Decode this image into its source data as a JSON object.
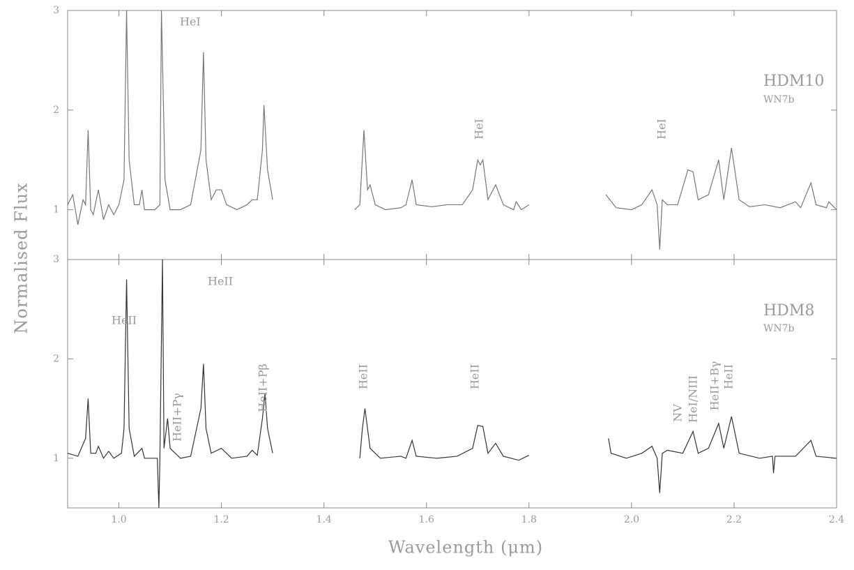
{
  "chart_data": [
    {
      "type": "line",
      "ylabel": "Normalised Flux",
      "star": "HDM10",
      "spectral_type": "WN7b",
      "annotations": [
        "HeI",
        "HeI",
        "HeI"
      ],
      "xlim": [
        0.9,
        2.4
      ],
      "ylim": [
        0.5,
        3
      ],
      "yticks": [
        1,
        2,
        3
      ],
      "x": [
        0.9,
        0.91,
        0.92,
        0.93,
        0.935,
        0.94,
        0.945,
        0.95,
        0.96,
        0.97,
        0.98,
        0.99,
        1.0,
        1.01,
        1.015,
        1.02,
        1.03,
        1.04,
        1.045,
        1.05,
        1.07,
        1.08,
        1.083,
        1.09,
        1.1,
        1.12,
        1.14,
        1.16,
        1.165,
        1.17,
        1.18,
        1.19,
        1.2,
        1.21,
        1.23,
        1.25,
        1.26,
        1.27,
        1.28,
        1.283,
        1.29,
        1.3,
        1.38,
        1.46,
        1.47,
        1.478,
        1.485,
        1.49,
        1.5,
        1.52,
        1.55,
        1.56,
        1.572,
        1.58,
        1.61,
        1.64,
        1.67,
        1.69,
        1.7,
        1.705,
        1.71,
        1.72,
        1.735,
        1.75,
        1.77,
        1.775,
        1.785,
        1.8,
        1.88,
        1.95,
        1.97,
        2.0,
        2.02,
        2.04,
        2.05,
        2.055,
        2.06,
        2.07,
        2.09,
        2.11,
        2.12,
        2.13,
        2.15,
        2.17,
        2.18,
        2.195,
        2.21,
        2.23,
        2.26,
        2.29,
        2.32,
        2.33,
        2.35,
        2.36,
        2.38,
        2.385,
        2.4
      ],
      "series": [
        {
          "name": "HDM10",
          "color": "#777777",
          "values": [
            1.05,
            1.15,
            0.85,
            1.1,
            1.05,
            1.8,
            1.0,
            0.95,
            1.2,
            0.9,
            1.05,
            0.95,
            1.05,
            1.3,
            3.0,
            1.5,
            1.05,
            1.05,
            1.2,
            1.0,
            1.0,
            1.05,
            3.0,
            1.3,
            1.0,
            1.0,
            1.05,
            1.6,
            2.58,
            1.5,
            1.1,
            1.2,
            1.2,
            1.05,
            1.0,
            1.05,
            1.1,
            1.1,
            1.6,
            2.05,
            1.4,
            1.1,
            null,
            1.0,
            1.05,
            1.8,
            1.2,
            1.25,
            1.05,
            1.0,
            1.02,
            1.05,
            1.3,
            1.05,
            1.03,
            1.05,
            1.05,
            1.2,
            1.5,
            1.45,
            1.5,
            1.1,
            1.25,
            1.05,
            1.0,
            1.08,
            1.0,
            1.05,
            null,
            1.15,
            1.02,
            1.0,
            1.05,
            1.2,
            1.05,
            0.6,
            1.1,
            1.05,
            1.05,
            1.4,
            1.38,
            1.1,
            1.15,
            1.5,
            1.1,
            1.62,
            1.1,
            1.03,
            1.05,
            1.02,
            1.08,
            1.02,
            1.27,
            1.05,
            1.02,
            1.08,
            1.0
          ]
        }
      ]
    },
    {
      "type": "line",
      "xlabel": "Wavelength  (μm)",
      "star": "HDM8",
      "spectral_type": "WN7b",
      "annotations": [
        "HeII",
        "HeII",
        "HeII+Pγ",
        "HeII+Pβ",
        "HeII",
        "HeII",
        "NV",
        "HeI/NIII",
        "HeII+Bγ",
        "HeII"
      ],
      "xlim": [
        0.9,
        2.4
      ],
      "ylim": [
        0.5,
        3
      ],
      "yticks": [
        1,
        2,
        3
      ],
      "xticks": [
        {
          "value": 1.0,
          "label": "1.0"
        },
        1.2,
        1.4,
        1.6,
        1.8,
        {
          "value": 2.0,
          "label": "2.0"
        },
        2.2,
        2.4
      ],
      "x": [
        0.9,
        0.92,
        0.935,
        0.94,
        0.945,
        0.955,
        0.96,
        0.97,
        0.98,
        0.99,
        1.005,
        1.01,
        1.015,
        1.02,
        1.03,
        1.045,
        1.05,
        1.075,
        1.078,
        1.08,
        1.085,
        1.088,
        1.095,
        1.1,
        1.12,
        1.14,
        1.16,
        1.165,
        1.17,
        1.18,
        1.2,
        1.22,
        1.25,
        1.26,
        1.27,
        1.28,
        1.285,
        1.29,
        1.3,
        1.38,
        1.47,
        1.475,
        1.48,
        1.485,
        1.49,
        1.51,
        1.55,
        1.56,
        1.572,
        1.58,
        1.62,
        1.66,
        1.69,
        1.7,
        1.71,
        1.72,
        1.735,
        1.75,
        1.78,
        1.8,
        1.88,
        1.955,
        1.96,
        1.99,
        2.02,
        2.04,
        2.05,
        2.055,
        2.06,
        2.07,
        2.1,
        2.12,
        2.13,
        2.15,
        2.17,
        2.18,
        2.195,
        2.21,
        2.25,
        2.275,
        2.277,
        2.28,
        2.32,
        2.35,
        2.36,
        2.4
      ],
      "series": [
        {
          "name": "HDM8",
          "color": "#333333",
          "values": [
            1.05,
            1.02,
            1.2,
            1.6,
            1.05,
            1.05,
            1.12,
            1.0,
            1.07,
            1.0,
            1.05,
            1.3,
            2.8,
            1.3,
            1.02,
            1.1,
            1.0,
            1.0,
            0.5,
            1.0,
            3.0,
            1.1,
            1.4,
            1.1,
            1.0,
            1.02,
            1.5,
            1.95,
            1.3,
            1.05,
            1.1,
            1.0,
            1.02,
            1.08,
            1.03,
            1.4,
            1.65,
            1.3,
            1.05,
            null,
            1.0,
            1.3,
            1.5,
            1.3,
            1.1,
            1.0,
            1.02,
            1.0,
            1.18,
            1.02,
            1.0,
            1.02,
            1.1,
            1.33,
            1.32,
            1.05,
            1.15,
            1.02,
            0.98,
            1.03,
            null,
            1.2,
            1.05,
            1.0,
            1.05,
            1.12,
            1.0,
            0.65,
            1.05,
            1.08,
            1.05,
            1.27,
            1.05,
            1.1,
            1.35,
            1.1,
            1.42,
            1.05,
            1.0,
            1.02,
            0.85,
            1.02,
            1.02,
            1.18,
            1.02,
            1.0
          ]
        }
      ]
    }
  ]
}
